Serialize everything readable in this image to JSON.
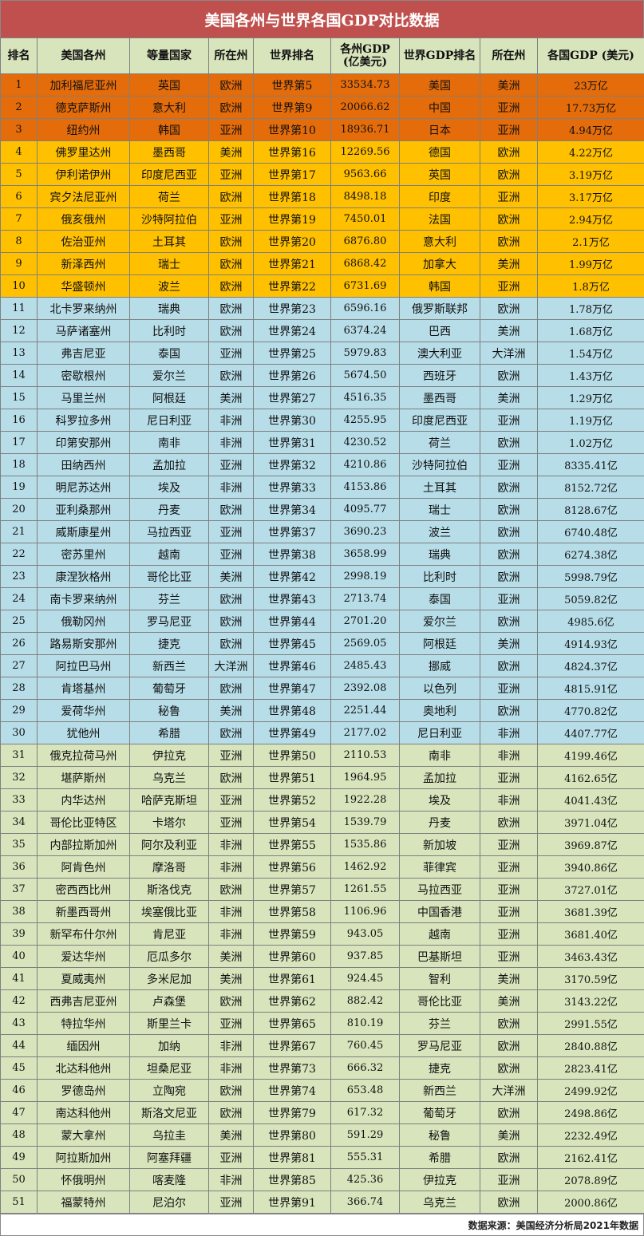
{
  "title": "美国各州与世界各国GDP对比数据",
  "headers": [
    "排名",
    "美国各州",
    "等量国家",
    "所在州",
    "世界排名",
    "各州GDP\n(亿美元)",
    "世界GDP排名",
    "所在州",
    "各国GDP (美元)"
  ],
  "tier_colors": {
    "t1": "#e46c0a",
    "t2": "#ffc000",
    "t3": "#b7dde8",
    "t4": "#d8e4bc",
    "title": "#c0504d"
  },
  "rows": [
    {
      "tier": "t1",
      "cells": [
        "1",
        "加利福尼亚州",
        "英国",
        "欧洲",
        "世界第5",
        "33534.73",
        "美国",
        "美洲",
        "23万亿"
      ]
    },
    {
      "tier": "t1",
      "cells": [
        "2",
        "德克萨斯州",
        "意大利",
        "欧洲",
        "世界第9",
        "20066.62",
        "中国",
        "亚洲",
        "17.73万亿"
      ]
    },
    {
      "tier": "t1",
      "cells": [
        "3",
        "纽约州",
        "韩国",
        "亚洲",
        "世界第10",
        "18936.71",
        "日本",
        "亚洲",
        "4.94万亿"
      ]
    },
    {
      "tier": "t2",
      "cells": [
        "4",
        "佛罗里达州",
        "墨西哥",
        "美洲",
        "世界第16",
        "12269.56",
        "德国",
        "欧洲",
        "4.22万亿"
      ]
    },
    {
      "tier": "t2",
      "cells": [
        "5",
        "伊利诺伊州",
        "印度尼西亚",
        "亚洲",
        "世界第17",
        "9563.66",
        "英国",
        "欧洲",
        "3.19万亿"
      ]
    },
    {
      "tier": "t2",
      "cells": [
        "6",
        "宾夕法尼亚州",
        "荷兰",
        "欧洲",
        "世界第18",
        "8498.18",
        "印度",
        "亚洲",
        "3.17万亿"
      ]
    },
    {
      "tier": "t2",
      "cells": [
        "7",
        "俄亥俄州",
        "沙特阿拉伯",
        "亚洲",
        "世界第19",
        "7450.01",
        "法国",
        "欧洲",
        "2.94万亿"
      ]
    },
    {
      "tier": "t2",
      "cells": [
        "8",
        "佐治亚州",
        "土耳其",
        "欧洲",
        "世界第20",
        "6876.80",
        "意大利",
        "欧洲",
        "2.1万亿"
      ]
    },
    {
      "tier": "t2",
      "cells": [
        "9",
        "新泽西州",
        "瑞士",
        "欧洲",
        "世界第21",
        "6868.42",
        "加拿大",
        "美洲",
        "1.99万亿"
      ]
    },
    {
      "tier": "t2",
      "cells": [
        "10",
        "华盛顿州",
        "波兰",
        "欧洲",
        "世界第22",
        "6731.69",
        "韩国",
        "亚洲",
        "1.8万亿"
      ]
    },
    {
      "tier": "t3",
      "cells": [
        "11",
        "北卡罗来纳州",
        "瑞典",
        "欧洲",
        "世界第23",
        "6596.16",
        "俄罗斯联邦",
        "欧洲",
        "1.78万亿"
      ]
    },
    {
      "tier": "t3",
      "cells": [
        "12",
        "马萨诸塞州",
        "比利时",
        "欧洲",
        "世界第24",
        "6374.24",
        "巴西",
        "美洲",
        "1.68万亿"
      ]
    },
    {
      "tier": "t3",
      "cells": [
        "13",
        "弗吉尼亚",
        "泰国",
        "亚洲",
        "世界第25",
        "5979.83",
        "澳大利亚",
        "大洋洲",
        "1.54万亿"
      ]
    },
    {
      "tier": "t3",
      "cells": [
        "14",
        "密歇根州",
        "爱尔兰",
        "欧洲",
        "世界第26",
        "5674.50",
        "西班牙",
        "欧洲",
        "1.43万亿"
      ]
    },
    {
      "tier": "t3",
      "cells": [
        "15",
        "马里兰州",
        "阿根廷",
        "美洲",
        "世界第27",
        "4516.35",
        "墨西哥",
        "美洲",
        "1.29万亿"
      ]
    },
    {
      "tier": "t3",
      "cells": [
        "16",
        "科罗拉多州",
        "尼日利亚",
        "非洲",
        "世界第30",
        "4255.95",
        "印度尼西亚",
        "亚洲",
        "1.19万亿"
      ]
    },
    {
      "tier": "t3",
      "cells": [
        "17",
        "印第安那州",
        "南非",
        "非洲",
        "世界第31",
        "4230.52",
        "荷兰",
        "欧洲",
        "1.02万亿"
      ]
    },
    {
      "tier": "t3",
      "cells": [
        "18",
        "田纳西州",
        "孟加拉",
        "亚洲",
        "世界第32",
        "4210.86",
        "沙特阿拉伯",
        "亚洲",
        "8335.41亿"
      ]
    },
    {
      "tier": "t3",
      "cells": [
        "19",
        "明尼苏达州",
        "埃及",
        "非洲",
        "世界第33",
        "4153.86",
        "土耳其",
        "欧洲",
        "8152.72亿"
      ]
    },
    {
      "tier": "t3",
      "cells": [
        "20",
        "亚利桑那州",
        "丹麦",
        "欧洲",
        "世界第34",
        "4095.77",
        "瑞士",
        "欧洲",
        "8128.67亿"
      ]
    },
    {
      "tier": "t3",
      "cells": [
        "21",
        "威斯康星州",
        "马拉西亚",
        "亚洲",
        "世界第37",
        "3690.23",
        "波兰",
        "欧洲",
        "6740.48亿"
      ]
    },
    {
      "tier": "t3",
      "cells": [
        "22",
        "密苏里州",
        "越南",
        "亚洲",
        "世界第38",
        "3658.99",
        "瑞典",
        "欧洲",
        "6274.38亿"
      ]
    },
    {
      "tier": "t3",
      "cells": [
        "23",
        "康涅狄格州",
        "哥伦比亚",
        "美洲",
        "世界第42",
        "2998.19",
        "比利时",
        "欧洲",
        "5998.79亿"
      ]
    },
    {
      "tier": "t3",
      "cells": [
        "24",
        "南卡罗来纳州",
        "芬兰",
        "欧洲",
        "世界第43",
        "2713.74",
        "泰国",
        "亚洲",
        "5059.82亿"
      ]
    },
    {
      "tier": "t3",
      "cells": [
        "25",
        "俄勒冈州",
        "罗马尼亚",
        "欧洲",
        "世界第44",
        "2701.20",
        "爱尔兰",
        "欧洲",
        "4985.6亿"
      ]
    },
    {
      "tier": "t3",
      "cells": [
        "26",
        "路易斯安那州",
        "捷克",
        "欧洲",
        "世界第45",
        "2569.05",
        "阿根廷",
        "美洲",
        "4914.93亿"
      ]
    },
    {
      "tier": "t3",
      "cells": [
        "27",
        "阿拉巴马州",
        "新西兰",
        "大洋洲",
        "世界第46",
        "2485.43",
        "挪威",
        "欧洲",
        "4824.37亿"
      ]
    },
    {
      "tier": "t3",
      "cells": [
        "28",
        "肯塔基州",
        "葡萄牙",
        "欧洲",
        "世界第47",
        "2392.08",
        "以色列",
        "亚洲",
        "4815.91亿"
      ]
    },
    {
      "tier": "t3",
      "cells": [
        "29",
        "爱荷华州",
        "秘鲁",
        "美洲",
        "世界第48",
        "2251.44",
        "奥地利",
        "欧洲",
        "4770.82亿"
      ]
    },
    {
      "tier": "t3",
      "cells": [
        "30",
        "犹他州",
        "希腊",
        "欧洲",
        "世界第49",
        "2177.02",
        "尼日利亚",
        "非洲",
        "4407.77亿"
      ]
    },
    {
      "tier": "t4",
      "cells": [
        "31",
        "俄克拉荷马州",
        "伊拉克",
        "亚洲",
        "世界第50",
        "2110.53",
        "南非",
        "非洲",
        "4199.46亿"
      ]
    },
    {
      "tier": "t4",
      "cells": [
        "32",
        "堪萨斯州",
        "乌克兰",
        "欧洲",
        "世界第51",
        "1964.95",
        "孟加拉",
        "亚洲",
        "4162.65亿"
      ]
    },
    {
      "tier": "t4",
      "cells": [
        "33",
        "内华达州",
        "哈萨克斯坦",
        "亚洲",
        "世界第52",
        "1922.28",
        "埃及",
        "非洲",
        "4041.43亿"
      ]
    },
    {
      "tier": "t4",
      "cells": [
        "34",
        "哥伦比亚特区",
        "卡塔尔",
        "亚洲",
        "世界第54",
        "1539.79",
        "丹麦",
        "欧洲",
        "3971.04亿"
      ]
    },
    {
      "tier": "t4",
      "cells": [
        "35",
        "内部拉斯加州",
        "阿尔及利亚",
        "非洲",
        "世界第55",
        "1535.86",
        "新加坡",
        "亚洲",
        "3969.87亿"
      ]
    },
    {
      "tier": "t4",
      "cells": [
        "36",
        "阿肯色州",
        "摩洛哥",
        "非洲",
        "世界第56",
        "1462.92",
        "菲律宾",
        "亚洲",
        "3940.86亿"
      ]
    },
    {
      "tier": "t4",
      "cells": [
        "37",
        "密西西比州",
        "斯洛伐克",
        "欧洲",
        "世界第57",
        "1261.55",
        "马拉西亚",
        "亚洲",
        "3727.01亿"
      ]
    },
    {
      "tier": "t4",
      "cells": [
        "38",
        "新墨西哥州",
        "埃塞俄比亚",
        "非洲",
        "世界第58",
        "1106.96",
        "中国香港",
        "亚洲",
        "3681.39亿"
      ]
    },
    {
      "tier": "t4",
      "cells": [
        "39",
        "新罕布什尔州",
        "肯尼亚",
        "非洲",
        "世界第59",
        "943.05",
        "越南",
        "亚洲",
        "3681.40亿"
      ]
    },
    {
      "tier": "t4",
      "cells": [
        "40",
        "爱达华州",
        "厄瓜多尔",
        "美洲",
        "世界第60",
        "937.85",
        "巴基斯坦",
        "亚洲",
        "3463.43亿"
      ]
    },
    {
      "tier": "t4",
      "cells": [
        "41",
        "夏威夷州",
        "多米尼加",
        "美洲",
        "世界第61",
        "924.45",
        "智利",
        "美洲",
        "3170.59亿"
      ]
    },
    {
      "tier": "t4",
      "cells": [
        "42",
        "西弗吉尼亚州",
        "卢森堡",
        "欧洲",
        "世界第62",
        "882.42",
        "哥伦比亚",
        "美洲",
        "3143.22亿"
      ]
    },
    {
      "tier": "t4",
      "cells": [
        "43",
        "特拉华州",
        "斯里兰卡",
        "亚洲",
        "世界第65",
        "810.19",
        "芬兰",
        "欧洲",
        "2991.55亿"
      ]
    },
    {
      "tier": "t4",
      "cells": [
        "44",
        "缅因州",
        "加纳",
        "非洲",
        "世界第67",
        "760.45",
        "罗马尼亚",
        "欧洲",
        "2840.88亿"
      ]
    },
    {
      "tier": "t4",
      "cells": [
        "45",
        "北达科他州",
        "坦桑尼亚",
        "非洲",
        "世界第73",
        "666.32",
        "捷克",
        "欧洲",
        "2823.41亿"
      ]
    },
    {
      "tier": "t4",
      "cells": [
        "46",
        "罗德岛州",
        "立陶宛",
        "欧洲",
        "世界第74",
        "653.48",
        "新西兰",
        "大洋洲",
        "2499.92亿"
      ]
    },
    {
      "tier": "t4",
      "cells": [
        "47",
        "南达科他州",
        "斯洛文尼亚",
        "欧洲",
        "世界第79",
        "617.32",
        "葡萄牙",
        "欧洲",
        "2498.86亿"
      ]
    },
    {
      "tier": "t4",
      "cells": [
        "48",
        "蒙大拿州",
        "乌拉圭",
        "美洲",
        "世界第80",
        "591.29",
        "秘鲁",
        "美洲",
        "2232.49亿"
      ]
    },
    {
      "tier": "t4",
      "cells": [
        "49",
        "阿拉斯加州",
        "阿塞拜疆",
        "亚洲",
        "世界第81",
        "555.31",
        "希腊",
        "欧洲",
        "2162.41亿"
      ]
    },
    {
      "tier": "t4",
      "cells": [
        "50",
        "怀俄明州",
        "喀麦隆",
        "非洲",
        "世界第85",
        "425.36",
        "伊拉克",
        "亚洲",
        "2078.89亿"
      ]
    },
    {
      "tier": "t4",
      "cells": [
        "51",
        "福蒙特州",
        "尼泊尔",
        "亚洲",
        "世界第91",
        "366.74",
        "乌克兰",
        "欧洲",
        "2000.86亿"
      ]
    }
  ],
  "footer": "数据来源：美国经济分析局2021年数据"
}
